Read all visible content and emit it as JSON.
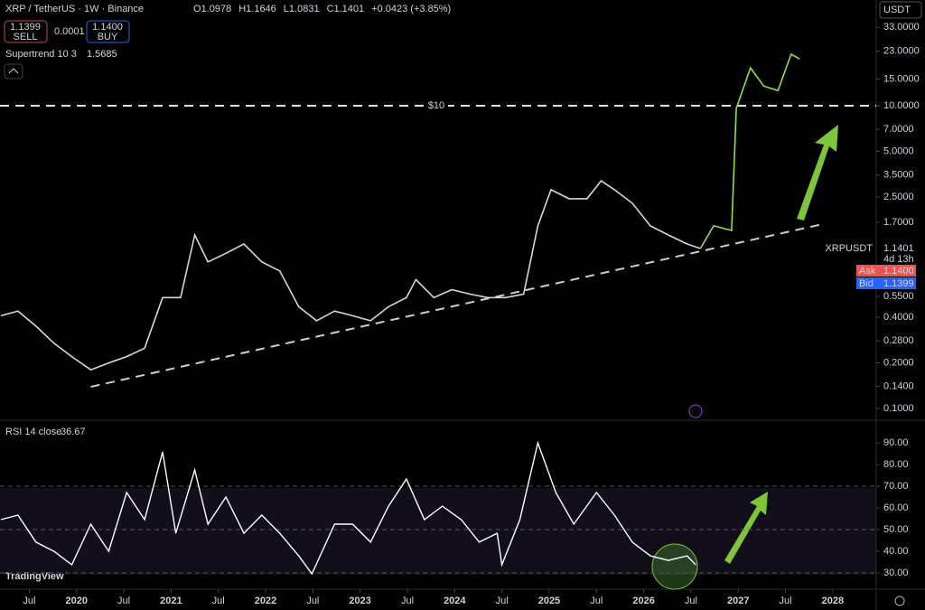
{
  "header": {
    "symbol": "XRP / TetherUS · 1W · Binance",
    "ohlc": [
      "O1.0978",
      "H1.1646",
      "L1.0831",
      "C1.1401",
      "+0.0423 (+3.85%)"
    ],
    "sell_price": "1.1399",
    "sell_label": "SELL",
    "spread": "0.0001",
    "buy_price": "1.1400",
    "buy_label": "BUY",
    "indicator": "Supertrend 10 3",
    "indicator_value": "1.5685",
    "currency": "USDT",
    "logo": "TradingView"
  },
  "chart_data": [
    {
      "type": "line",
      "log_scale": true,
      "xlim": [
        2019.19,
        2028.46
      ],
      "ylim": [
        0.0836,
        50
      ],
      "xticks": [
        {
          "value": 2019.5,
          "label": "Jul"
        },
        2020,
        {
          "value": 2020.5,
          "label": "Jul"
        },
        2021,
        {
          "value": 2021.5,
          "label": "Jul"
        },
        2022,
        {
          "value": 2022.5,
          "label": "Jul"
        },
        2023,
        {
          "value": 2023.5,
          "label": "Jul"
        },
        2024,
        {
          "value": 2024.5,
          "label": "Jul"
        },
        2025,
        {
          "value": 2025.5,
          "label": "Jul"
        },
        2026,
        {
          "value": 2026.5,
          "label": "Jul"
        },
        2027,
        {
          "value": 2027.5,
          "label": "Jul"
        },
        2028
      ],
      "yticks": [
        {
          "value": 33,
          "label": "33.0000"
        },
        {
          "value": 23,
          "label": "23.0000"
        },
        {
          "value": 15,
          "label": "15.0000"
        },
        {
          "value": 10,
          "label": "10.0000"
        },
        {
          "value": 7,
          "label": "7.0000"
        },
        {
          "value": 5,
          "label": "5.0000"
        },
        {
          "value": 3.5,
          "label": "3.5000"
        },
        {
          "value": 2.5,
          "label": "2.5000"
        },
        {
          "value": 1.7,
          "label": "1.7000"
        },
        {
          "value": 0.55,
          "label": "0.5500"
        },
        {
          "value": 0.4,
          "label": "0.4000"
        },
        {
          "value": 0.28,
          "label": "0.2800"
        },
        {
          "value": 0.2,
          "label": "0.2000"
        },
        {
          "value": 0.14,
          "label": "0.1400"
        },
        {
          "value": 0.1,
          "label": "0.1000"
        }
      ],
      "series": [
        {
          "color": "#d8d8d8",
          "x": [
            2019.2,
            2019.38,
            2019.57,
            2019.76,
            2019.95,
            2020.15,
            2020.34,
            2020.53,
            2020.72,
            2020.91,
            2021.1,
            2021.25,
            2021.39,
            2021.58,
            2021.77,
            2021.96,
            2022.15,
            2022.35,
            2022.54,
            2022.73,
            2022.92,
            2023.11,
            2023.3,
            2023.49,
            2023.59,
            2023.78,
            2023.97,
            2024.16,
            2024.35,
            2024.54,
            2024.73,
            2024.88,
            2025.02,
            2025.21,
            2025.4,
            2025.55,
            2025.69,
            2025.88,
            2026.07,
            2026.26,
            2026.46,
            2026.6
          ],
          "values": [
            0.41,
            0.44,
            0.35,
            0.27,
            0.22,
            0.18,
            0.2,
            0.22,
            0.25,
            0.54,
            0.54,
            1.4,
            0.93,
            1.06,
            1.22,
            0.93,
            0.81,
            0.47,
            0.38,
            0.44,
            0.41,
            0.38,
            0.47,
            0.54,
            0.71,
            0.54,
            0.61,
            0.57,
            0.54,
            0.54,
            0.57,
            1.61,
            2.79,
            2.43,
            2.43,
            3.19,
            2.79,
            2.27,
            1.61,
            1.4,
            1.22,
            1.14
          ]
        },
        {
          "color": "#8fe04a",
          "x": [
            2026.6,
            2026.74,
            2026.93,
            2026.98,
            2027.13,
            2027.27,
            2027.42,
            2027.56,
            2027.65
          ],
          "values": [
            1.14,
            1.61,
            1.5,
            9.6,
            17.8,
            13.5,
            12.6,
            21.9,
            20.4
          ]
        }
      ],
      "hlines": [
        {
          "value": 10,
          "label": "$10"
        }
      ],
      "trendline": {
        "x": [
          2020.15,
          2027.89
        ],
        "values": [
          0.139,
          1.65
        ]
      },
      "last_price": {
        "symbol": "XRPUSDT",
        "value": 1.1401,
        "countdown": "4d 13h"
      },
      "ask": {
        "label": "Ask",
        "value": 1.14,
        "value_label": "1.1400"
      },
      "bid": {
        "label": "Bid",
        "value": 1.1399
      }
    },
    {
      "type": "line",
      "title": "RSI 14 close",
      "last_value": 36.67,
      "xlim": [
        2019.19,
        2028.46
      ],
      "ylim": [
        22.5,
        99.2
      ],
      "yticks": [
        {
          "value": 90,
          "label": "90.00"
        },
        {
          "value": 80,
          "label": "80.00"
        },
        {
          "value": 70,
          "label": "70.00"
        },
        {
          "value": 60,
          "label": "60.00"
        },
        {
          "value": 50,
          "label": "50.00"
        },
        {
          "value": 40,
          "label": "40.00"
        },
        {
          "value": 30,
          "label": "30.00"
        }
      ],
      "levels": [
        30,
        50,
        70
      ],
      "series": [
        {
          "color": "#ffffff",
          "x": [
            2019.2,
            2019.38,
            2019.57,
            2019.76,
            2019.95,
            2020.15,
            2020.34,
            2020.53,
            2020.72,
            2020.91,
            2021.05,
            2021.25,
            2021.39,
            2021.58,
            2021.77,
            2021.96,
            2022.15,
            2022.35,
            2022.49,
            2022.73,
            2022.92,
            2023.11,
            2023.3,
            2023.49,
            2023.68,
            2023.87,
            2024.07,
            2024.26,
            2024.45,
            2024.5,
            2024.69,
            2024.88,
            2025.07,
            2025.26,
            2025.5,
            2025.69,
            2025.88,
            2026.07,
            2026.26,
            2026.46,
            2026.55
          ],
          "values": [
            54.6,
            56.7,
            44.2,
            40,
            33.8,
            52.5,
            40,
            67.1,
            54.6,
            85.8,
            48.3,
            77.5,
            52.5,
            65,
            48.3,
            56.7,
            48.3,
            37.9,
            29.6,
            52.5,
            52.5,
            44.2,
            60.8,
            73.3,
            54.6,
            60.8,
            54.6,
            44.2,
            48.3,
            33.8,
            54.6,
            90,
            67.1,
            52.5,
            67.1,
            56.7,
            44.2,
            37.9,
            35.8,
            37.9,
            33.8
          ]
        }
      ]
    }
  ]
}
